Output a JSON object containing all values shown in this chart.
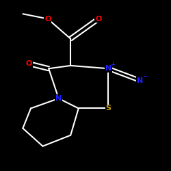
{
  "background_color": "#000000",
  "atom_colors": {
    "C": "#ffffff",
    "N": "#2020ff",
    "O": "#ff0000",
    "S": "#ccaa00"
  },
  "bond_color": "#ffffff",
  "figsize": [
    2.5,
    2.5
  ],
  "dpi": 100
}
